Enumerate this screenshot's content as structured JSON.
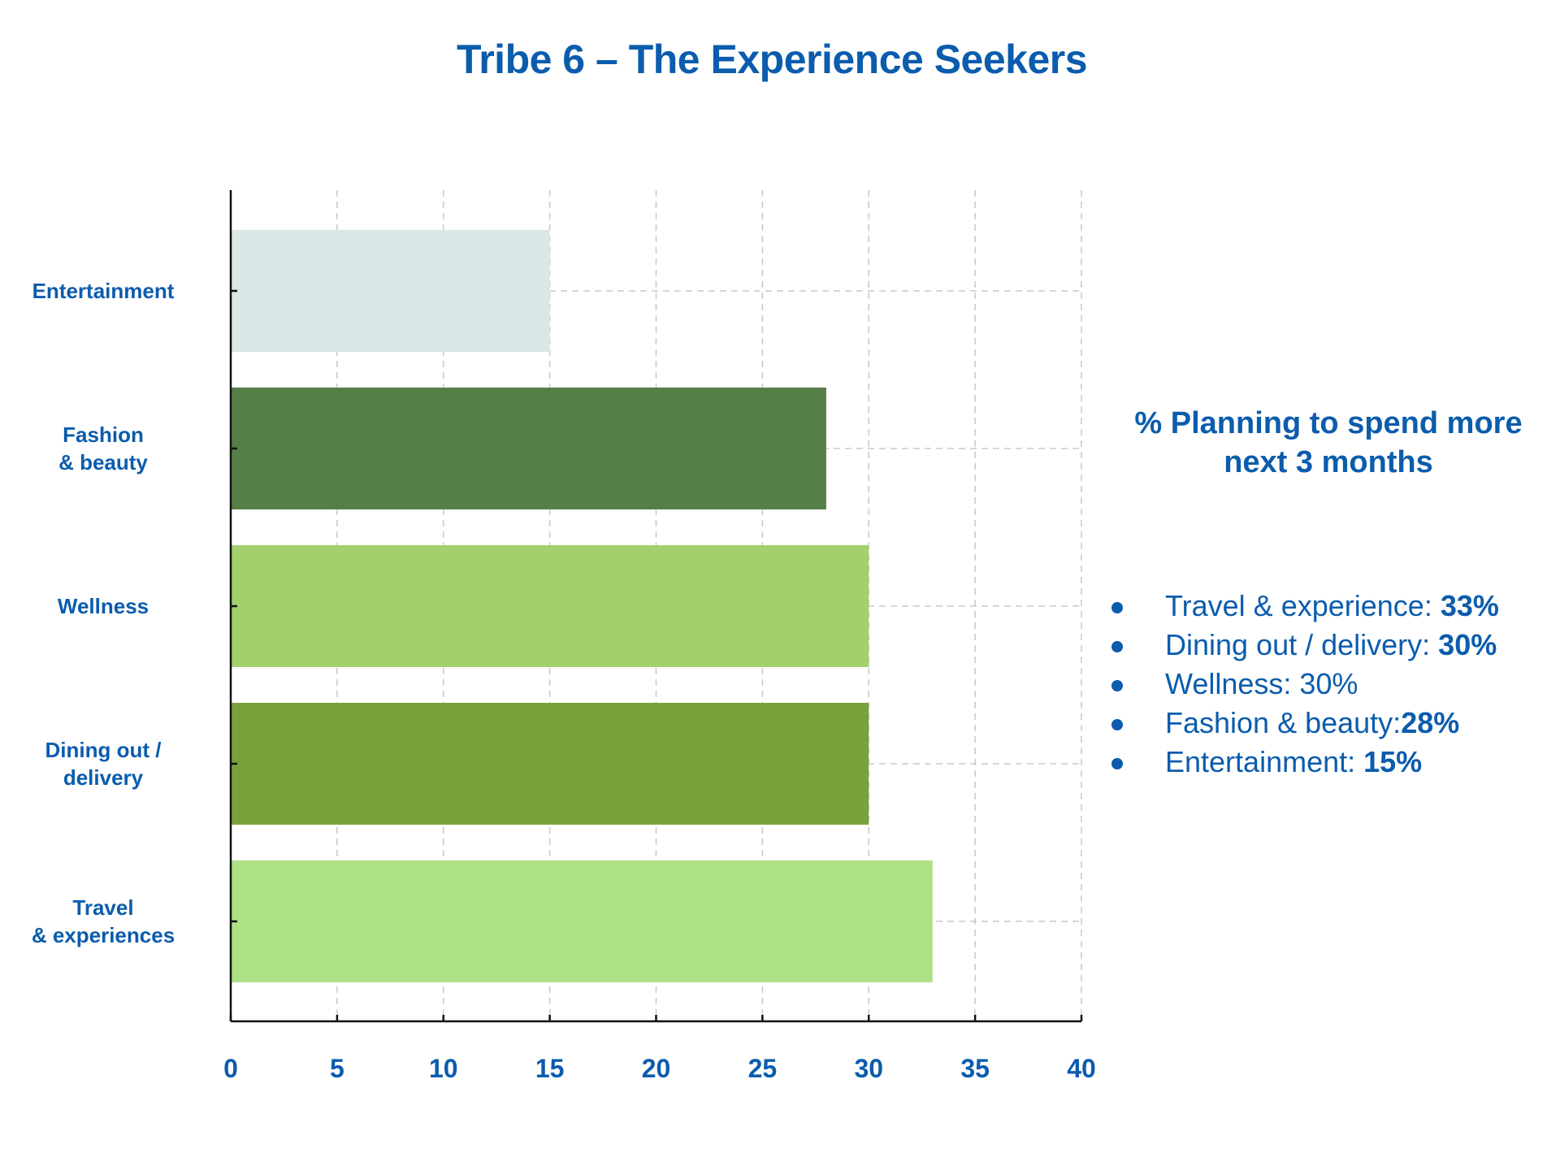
{
  "title": "Tribe 6 – The Experience Seekers",
  "panel": {
    "title": "% Planning to spend more next 3 months",
    "items": [
      {
        "label": "Travel & experience: ",
        "value": "33%"
      },
      {
        "label": "Dining out / delivery: ",
        "value": "30%"
      },
      {
        "label": "Wellness: 30%",
        "value": ""
      },
      {
        "label": "Fashion & beauty:",
        "value": "28%"
      },
      {
        "label": "Entertainment: ",
        "value": "15%"
      }
    ]
  },
  "chart_data": {
    "type": "bar",
    "orientation": "horizontal",
    "categories": [
      "Entertainment",
      "Fashion\n& beauty",
      "Wellness",
      "Dining out /\ndelivery",
      "Travel\n& experiences"
    ],
    "values": [
      15,
      28,
      30,
      30,
      33
    ],
    "colors": [
      "#d9e8e6",
      "#557f47",
      "#a1d06d",
      "#7aa23c",
      "#aee086"
    ],
    "xlim": [
      0,
      40
    ],
    "xticks": [
      0,
      5,
      10,
      15,
      20,
      25,
      30,
      35,
      40
    ],
    "grid": true,
    "tick_color": "#0b5cad"
  }
}
